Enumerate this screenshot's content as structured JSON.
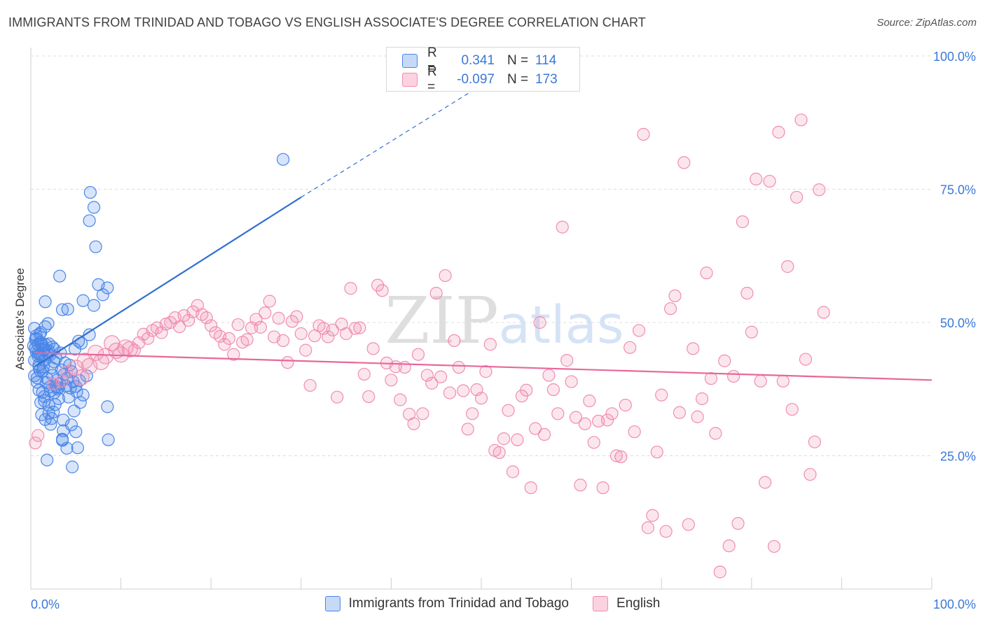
{
  "title": "IMMIGRANTS FROM TRINIDAD AND TOBAGO VS ENGLISH ASSOCIATE'S DEGREE CORRELATION CHART",
  "source": "Source: ZipAtlas.com",
  "watermark": "ZIPatlas",
  "legend_stats": [
    {
      "r_label": "R =",
      "r_value": "0.341",
      "n_label": "N =",
      "n_value": "114"
    },
    {
      "r_label": "R =",
      "r_value": "-0.097",
      "n_label": "N =",
      "n_value": "173"
    }
  ],
  "bottom_legend": [
    "Immigrants from Trinidad and Tobago",
    "English"
  ],
  "chart_data": {
    "type": "scatter",
    "ylabel": "Associate's Degree",
    "xlim": [
      0,
      100
    ],
    "ylim": [
      0,
      100
    ],
    "x_tick_labels": [
      "0.0%",
      "100.0%"
    ],
    "y_tick_labels": [
      "25.0%",
      "50.0%",
      "75.0%",
      "100.0%"
    ],
    "y_ticks": [
      25,
      50,
      75,
      100
    ],
    "grid": true,
    "legend_position": "top-center",
    "colors": {
      "blue": "#4a86e8",
      "blue_line": "#2f6fd0",
      "pink": "#f08db0",
      "pink_line": "#e8679a"
    },
    "series": [
      {
        "name": "Immigrants from Trinidad and Tobago",
        "color": "blue",
        "trend": {
          "x0": 0.5,
          "y0": 41.8,
          "x1": 30,
          "y1": 73.5,
          "dash_to_x": 50,
          "dash_to_y": 94.5
        },
        "points": [
          [
            0.3,
            45.6
          ],
          [
            0.5,
            45.2
          ],
          [
            0.4,
            48.9
          ],
          [
            0.6,
            47.0
          ],
          [
            0.8,
            44.2
          ],
          [
            1.0,
            44.0
          ],
          [
            1.2,
            43.5
          ],
          [
            1.1,
            46.3
          ],
          [
            0.9,
            42.1
          ],
          [
            0.7,
            38.8
          ],
          [
            1.3,
            40.9
          ],
          [
            1.5,
            45.1
          ],
          [
            1.7,
            45.8
          ],
          [
            1.6,
            49.2
          ],
          [
            1.9,
            49.8
          ],
          [
            2.0,
            44.6
          ],
          [
            2.1,
            43.9
          ],
          [
            1.4,
            41.7
          ],
          [
            1.8,
            39.5
          ],
          [
            2.2,
            37.2
          ],
          [
            2.4,
            40.1
          ],
          [
            2.6,
            36.8
          ],
          [
            2.8,
            38.0
          ],
          [
            3.0,
            37.5
          ],
          [
            3.2,
            38.5
          ],
          [
            2.5,
            33.2
          ],
          [
            2.0,
            34.5
          ],
          [
            1.5,
            35.3
          ],
          [
            1.2,
            32.7
          ],
          [
            1.6,
            31.8
          ],
          [
            2.3,
            32.0
          ],
          [
            3.5,
            28.1
          ],
          [
            4.0,
            26.4
          ],
          [
            3.6,
            29.7
          ],
          [
            4.5,
            30.8
          ],
          [
            5.0,
            29.5
          ],
          [
            1.8,
            24.2
          ],
          [
            3.5,
            27.9
          ],
          [
            4.6,
            22.9
          ],
          [
            5.2,
            26.5
          ],
          [
            3.0,
            37.8
          ],
          [
            4.2,
            36.0
          ],
          [
            4.8,
            33.4
          ],
          [
            5.5,
            35.0
          ],
          [
            4.0,
            39.5
          ],
          [
            3.8,
            42.4
          ],
          [
            4.5,
            40.8
          ],
          [
            5.0,
            38.0
          ],
          [
            5.8,
            36.4
          ],
          [
            6.2,
            40.0
          ],
          [
            4.9,
            45.0
          ],
          [
            5.3,
            46.5
          ],
          [
            6.5,
            47.7
          ],
          [
            4.1,
            52.5
          ],
          [
            3.5,
            52.4
          ],
          [
            5.8,
            54.1
          ],
          [
            3.2,
            58.7
          ],
          [
            1.6,
            53.9
          ],
          [
            5.6,
            46.1
          ],
          [
            7.0,
            53.2
          ],
          [
            7.5,
            57.1
          ],
          [
            8.5,
            56.5
          ],
          [
            8.0,
            55.2
          ],
          [
            7.2,
            64.2
          ],
          [
            6.5,
            69.1
          ],
          [
            7.0,
            71.6
          ],
          [
            6.6,
            74.4
          ],
          [
            28.0,
            80.6
          ],
          [
            8.5,
            34.2
          ],
          [
            8.6,
            28.0
          ],
          [
            0.5,
            46.8
          ],
          [
            0.8,
            45.9
          ],
          [
            1.0,
            47.8
          ],
          [
            1.2,
            46.0
          ],
          [
            1.4,
            44.8
          ],
          [
            1.6,
            43.0
          ],
          [
            2.0,
            46.0
          ],
          [
            2.3,
            41.5
          ],
          [
            2.6,
            42.6
          ],
          [
            1.0,
            41.0
          ],
          [
            0.7,
            39.6
          ],
          [
            0.9,
            37.3
          ],
          [
            1.3,
            36.9
          ],
          [
            2.7,
            34.6
          ],
          [
            3.1,
            35.7
          ],
          [
            3.6,
            31.7
          ],
          [
            2.2,
            30.9
          ],
          [
            0.6,
            44.5
          ],
          [
            1.7,
            38.7
          ],
          [
            2.9,
            39.2
          ],
          [
            3.9,
            38.1
          ],
          [
            4.4,
            37.7
          ],
          [
            4.7,
            38.9
          ],
          [
            0.4,
            42.9
          ],
          [
            0.9,
            41.6
          ],
          [
            1.9,
            44.1
          ],
          [
            2.4,
            45.4
          ],
          [
            2.8,
            43.3
          ],
          [
            1.1,
            48.1
          ],
          [
            0.6,
            47.5
          ],
          [
            3.4,
            41.1
          ],
          [
            3.7,
            40.3
          ],
          [
            4.3,
            42.0
          ],
          [
            5.1,
            37.0
          ],
          [
            5.4,
            39.1
          ],
          [
            2.1,
            37.9
          ],
          [
            1.5,
            36.1
          ],
          [
            0.8,
            43.7
          ],
          [
            1.3,
            45.6
          ],
          [
            2.6,
            45.0
          ],
          [
            3.3,
            44.3
          ],
          [
            1.1,
            35.0
          ],
          [
            2.0,
            33.0
          ],
          [
            0.4,
            40.0
          ]
        ]
      },
      {
        "name": "English",
        "color": "pink",
        "trend": {
          "x0": 0.5,
          "y0": 44.3,
          "x1": 100,
          "y1": 39.2
        },
        "points": [
          [
            0.5,
            27.4
          ],
          [
            0.8,
            28.8
          ],
          [
            2.5,
            38.5
          ],
          [
            3.5,
            39.0
          ],
          [
            4.0,
            40.8
          ],
          [
            5.0,
            41.5
          ],
          [
            5.6,
            39.7
          ],
          [
            6.0,
            42.8
          ],
          [
            6.5,
            41.8
          ],
          [
            7.2,
            44.3
          ],
          [
            7.8,
            42.6
          ],
          [
            8.3,
            43.7
          ],
          [
            9.0,
            46.1
          ],
          [
            9.5,
            44.7
          ],
          [
            10.0,
            44.0
          ],
          [
            10.5,
            45.3
          ],
          [
            11.0,
            45.0
          ],
          [
            11.5,
            44.8
          ],
          [
            12.0,
            46.2
          ],
          [
            12.5,
            47.8
          ],
          [
            13.0,
            47.0
          ],
          [
            13.5,
            48.5
          ],
          [
            14.0,
            49.0
          ],
          [
            14.5,
            48.1
          ],
          [
            15.0,
            49.7
          ],
          [
            15.5,
            50.0
          ],
          [
            16.0,
            50.9
          ],
          [
            16.5,
            49.2
          ],
          [
            17.0,
            51.3
          ],
          [
            17.5,
            50.4
          ],
          [
            18.0,
            52.0
          ],
          [
            18.5,
            53.2
          ],
          [
            19.0,
            51.5
          ],
          [
            19.5,
            50.9
          ],
          [
            20.0,
            49.4
          ],
          [
            20.5,
            48.1
          ],
          [
            21.0,
            47.4
          ],
          [
            21.5,
            45.9
          ],
          [
            22.0,
            47.0
          ],
          [
            22.5,
            44.0
          ],
          [
            23.0,
            49.6
          ],
          [
            23.5,
            46.3
          ],
          [
            24.0,
            46.8
          ],
          [
            24.5,
            49.0
          ],
          [
            25.0,
            50.6
          ],
          [
            25.5,
            49.1
          ],
          [
            26.0,
            51.8
          ],
          [
            26.5,
            54.0
          ],
          [
            27.0,
            47.3
          ],
          [
            27.5,
            50.8
          ],
          [
            28.0,
            46.6
          ],
          [
            28.5,
            42.5
          ],
          [
            29.0,
            50.2
          ],
          [
            29.5,
            51.1
          ],
          [
            30.0,
            47.9
          ],
          [
            30.5,
            44.8
          ],
          [
            31.0,
            38.2
          ],
          [
            31.5,
            47.5
          ],
          [
            32.0,
            49.4
          ],
          [
            32.5,
            48.9
          ],
          [
            33.0,
            47.3
          ],
          [
            33.5,
            48.6
          ],
          [
            34.0,
            36.0
          ],
          [
            34.5,
            49.7
          ],
          [
            35.0,
            47.9
          ],
          [
            35.5,
            56.4
          ],
          [
            36.0,
            48.9
          ],
          [
            36.5,
            49.0
          ],
          [
            37.0,
            40.3
          ],
          [
            37.5,
            36.1
          ],
          [
            38.0,
            45.1
          ],
          [
            38.5,
            57.0
          ],
          [
            39.0,
            56.0
          ],
          [
            39.5,
            42.4
          ],
          [
            40.0,
            39.2
          ],
          [
            40.5,
            41.7
          ],
          [
            41.0,
            35.5
          ],
          [
            41.5,
            41.6
          ],
          [
            42.0,
            32.8
          ],
          [
            42.5,
            31.0
          ],
          [
            43.0,
            44.0
          ],
          [
            43.5,
            32.9
          ],
          [
            44.0,
            40.1
          ],
          [
            44.5,
            38.6
          ],
          [
            45.0,
            55.5
          ],
          [
            45.5,
            39.8
          ],
          [
            46.0,
            58.8
          ],
          [
            46.5,
            36.8
          ],
          [
            47.0,
            46.6
          ],
          [
            47.5,
            41.6
          ],
          [
            48.0,
            37.2
          ],
          [
            48.5,
            30.0
          ],
          [
            49.0,
            32.9
          ],
          [
            49.5,
            37.4
          ],
          [
            50.0,
            35.8
          ],
          [
            50.5,
            40.8
          ],
          [
            51.0,
            45.9
          ],
          [
            51.5,
            26.0
          ],
          [
            52.0,
            25.6
          ],
          [
            52.5,
            28.2
          ],
          [
            53.0,
            33.5
          ],
          [
            53.5,
            22.0
          ],
          [
            54.0,
            28.0
          ],
          [
            54.5,
            36.2
          ],
          [
            55.0,
            37.3
          ],
          [
            55.5,
            19.0
          ],
          [
            56.0,
            30.1
          ],
          [
            56.5,
            50.0
          ],
          [
            57.0,
            29.0
          ],
          [
            57.5,
            40.1
          ],
          [
            58.0,
            37.4
          ],
          [
            58.5,
            32.9
          ],
          [
            59.0,
            67.9
          ],
          [
            59.5,
            42.9
          ],
          [
            60.0,
            38.9
          ],
          [
            60.5,
            32.2
          ],
          [
            61.0,
            19.5
          ],
          [
            61.5,
            31.0
          ],
          [
            62.0,
            35.3
          ],
          [
            62.5,
            27.5
          ],
          [
            63.0,
            31.5
          ],
          [
            63.5,
            19.0
          ],
          [
            64.0,
            31.7
          ],
          [
            64.5,
            32.9
          ],
          [
            65.0,
            25.0
          ],
          [
            65.5,
            24.8
          ],
          [
            66.0,
            34.5
          ],
          [
            66.5,
            45.3
          ],
          [
            67.0,
            29.5
          ],
          [
            67.5,
            48.5
          ],
          [
            68.0,
            85.3
          ],
          [
            68.5,
            11.5
          ],
          [
            69.0,
            13.8
          ],
          [
            69.5,
            25.7
          ],
          [
            70.0,
            36.4
          ],
          [
            70.5,
            10.8
          ],
          [
            71.0,
            52.6
          ],
          [
            71.5,
            55.0
          ],
          [
            72.0,
            33.1
          ],
          [
            72.5,
            80.0
          ],
          [
            73.0,
            12.1
          ],
          [
            73.5,
            45.1
          ],
          [
            74.0,
            32.3
          ],
          [
            74.5,
            35.7
          ],
          [
            75.0,
            59.3
          ],
          [
            75.5,
            39.5
          ],
          [
            76.0,
            29.2
          ],
          [
            76.5,
            3.2
          ],
          [
            77.0,
            42.8
          ],
          [
            77.5,
            8.1
          ],
          [
            78.0,
            39.9
          ],
          [
            78.5,
            12.3
          ],
          [
            79.0,
            68.9
          ],
          [
            79.5,
            55.5
          ],
          [
            80.0,
            48.2
          ],
          [
            80.5,
            76.9
          ],
          [
            81.0,
            39.0
          ],
          [
            81.5,
            20.0
          ],
          [
            82.0,
            76.5
          ],
          [
            82.5,
            8.0
          ],
          [
            83.0,
            85.7
          ],
          [
            83.5,
            39.0
          ],
          [
            84.0,
            60.5
          ],
          [
            84.5,
            33.7
          ],
          [
            85.0,
            73.5
          ],
          [
            85.5,
            88.0
          ],
          [
            86.0,
            43.1
          ],
          [
            86.5,
            21.5
          ],
          [
            87.0,
            27.6
          ],
          [
            87.5,
            74.9
          ],
          [
            88.0,
            51.9
          ]
        ]
      }
    ]
  }
}
